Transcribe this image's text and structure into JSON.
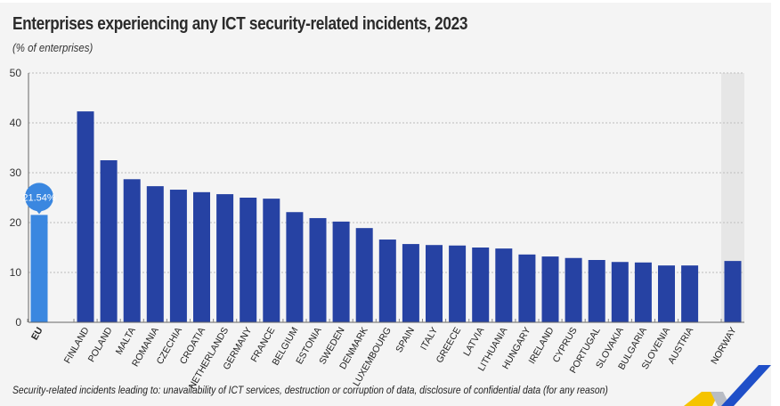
{
  "chart_data": {
    "type": "bar",
    "title": "Enterprises experiencing any ICT security-related incidents, 2023",
    "subtitle": "(% of enterprises)",
    "xlabel": "",
    "ylabel": "% of enterprises",
    "ylim": [
      0,
      50
    ],
    "yticks": [
      0,
      10,
      20,
      30,
      40,
      50
    ],
    "grid": true,
    "categories": [
      "EU",
      "FINLAND",
      "POLAND",
      "MALTA",
      "ROMANIA",
      "CZECHIA",
      "CROATIA",
      "NETHERLANDS",
      "GERMANY",
      "FRANCE",
      "BELGIUM",
      "ESTONIA",
      "SWEDEN",
      "DENMARK",
      "LUXEMBOURG",
      "SPAIN",
      "ITALY",
      "GREECE",
      "LATVIA",
      "LITHUANIA",
      "HUNGARY",
      "IRELAND",
      "CYPRUS",
      "PORTUGAL",
      "SLOVAKIA",
      "BULGARIA",
      "SLOVENIA",
      "AUSTRIA",
      "NORWAY"
    ],
    "values": [
      21.54,
      42.3,
      32.5,
      28.7,
      27.3,
      26.6,
      26.1,
      25.7,
      25.0,
      24.8,
      22.1,
      20.9,
      20.2,
      18.9,
      16.6,
      15.7,
      15.5,
      15.4,
      15.0,
      14.8,
      13.6,
      13.2,
      12.9,
      12.5,
      12.1,
      12.0,
      11.4,
      11.4,
      12.3
    ],
    "groups": [
      "eu",
      "member",
      "member",
      "member",
      "member",
      "member",
      "member",
      "member",
      "member",
      "member",
      "member",
      "member",
      "member",
      "member",
      "member",
      "member",
      "member",
      "member",
      "member",
      "member",
      "member",
      "member",
      "member",
      "member",
      "member",
      "member",
      "member",
      "member",
      "efta"
    ],
    "annotations": [
      {
        "category": "EU",
        "label": "21.54%"
      }
    ],
    "colors": {
      "eu": "#3a87e0",
      "member": "#2642a3",
      "efta": "#2642a3",
      "efta_band": "#e6e6e6",
      "callout": "#3a87e0"
    },
    "footnote": "Security-related incidents leading to: unavailability of ICT services, destruction or corruption of data, disclosure of confidential data (for any reason)"
  }
}
